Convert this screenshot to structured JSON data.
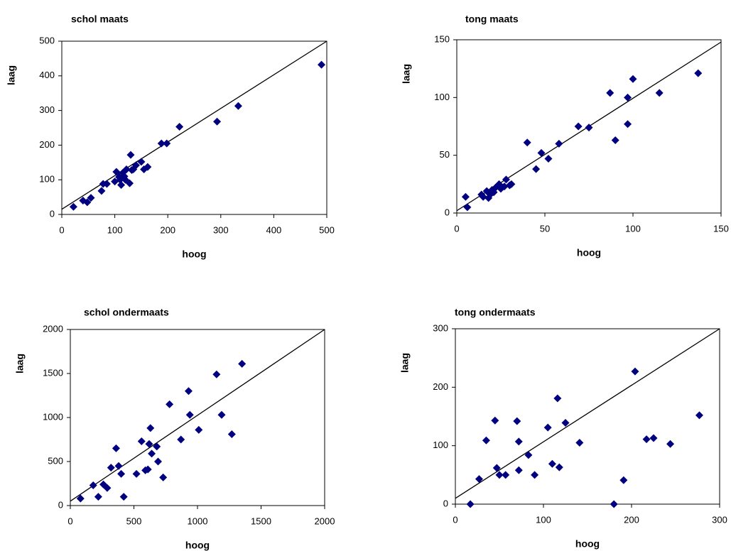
{
  "chart_data": [
    {
      "type": "scatter",
      "title": "schol maats",
      "xlabel": "hoog",
      "ylabel": "laag",
      "color": "#000080",
      "xlim": [
        0,
        500
      ],
      "ylim": [
        0,
        500
      ],
      "xticks": [
        0,
        100,
        200,
        300,
        400,
        500
      ],
      "yticks": [
        0,
        100,
        200,
        300,
        400,
        500
      ],
      "x": [
        22,
        40,
        48,
        55,
        75,
        78,
        85,
        100,
        103,
        108,
        110,
        112,
        115,
        118,
        120,
        122,
        128,
        130,
        132,
        135,
        140,
        150,
        155,
        162,
        188,
        198,
        222,
        293,
        333,
        490
      ],
      "y": [
        22,
        40,
        35,
        48,
        68,
        88,
        88,
        95,
        123,
        108,
        100,
        85,
        120,
        110,
        100,
        130,
        90,
        172,
        128,
        130,
        142,
        152,
        130,
        137,
        205,
        205,
        253,
        268,
        313,
        432
      ],
      "trend_line": {
        "x": [
          0,
          500
        ],
        "y": [
          15,
          500
        ]
      }
    },
    {
      "type": "scatter",
      "title": "tong maats",
      "xlabel": "hoog",
      "ylabel": "laag",
      "color": "#000080",
      "xlim": [
        0,
        150
      ],
      "ylim": [
        0,
        150
      ],
      "xticks": [
        0,
        50,
        100,
        150
      ],
      "yticks": [
        0,
        50,
        100,
        150
      ],
      "x": [
        5,
        6,
        14,
        15,
        17,
        18,
        19,
        20,
        21,
        22,
        24,
        25,
        27,
        28,
        30,
        31,
        40,
        45,
        48,
        52,
        58,
        69,
        75,
        87,
        90,
        97,
        97,
        100,
        115,
        137
      ],
      "y": [
        14,
        5,
        16,
        14,
        19,
        13,
        16,
        20,
        18,
        22,
        25,
        21,
        23,
        29,
        24,
        25,
        61,
        38,
        52,
        47,
        60,
        75,
        74,
        104,
        63,
        100,
        77,
        116,
        104,
        121
      ],
      "trend_line": {
        "x": [
          0,
          150
        ],
        "y": [
          2,
          148
        ]
      }
    },
    {
      "type": "scatter",
      "title": "schol ondermaats",
      "xlabel": "hoog",
      "ylabel": "laag",
      "color": "#000080",
      "xlim": [
        0,
        2000
      ],
      "ylim": [
        0,
        2000
      ],
      "xticks": [
        0,
        500,
        1000,
        1500,
        2000
      ],
      "yticks": [
        0,
        500,
        1000,
        1500,
        2000
      ],
      "x": [
        80,
        180,
        220,
        260,
        290,
        320,
        360,
        380,
        400,
        420,
        520,
        560,
        590,
        610,
        620,
        630,
        640,
        680,
        690,
        730,
        780,
        870,
        930,
        940,
        1010,
        1150,
        1190,
        1270,
        1350
      ],
      "y": [
        80,
        230,
        100,
        240,
        200,
        430,
        650,
        450,
        360,
        100,
        360,
        730,
        400,
        410,
        700,
        880,
        590,
        670,
        500,
        320,
        1150,
        750,
        1300,
        1030,
        860,
        1490,
        1030,
        810,
        1610
      ],
      "trend_line": {
        "x": [
          0,
          2000
        ],
        "y": [
          50,
          2000
        ]
      }
    },
    {
      "type": "scatter",
      "title": "tong ondermaats",
      "xlabel": "hoog",
      "ylabel": "laag",
      "color": "#000080",
      "xlim": [
        0,
        300
      ],
      "ylim": [
        0,
        300
      ],
      "xticks": [
        0,
        100,
        200,
        300
      ],
      "yticks": [
        0,
        100,
        200,
        300
      ],
      "x": [
        17,
        27,
        35,
        45,
        47,
        50,
        57,
        70,
        72,
        72,
        83,
        90,
        105,
        110,
        116,
        118,
        125,
        141,
        180,
        191,
        204,
        217,
        225,
        244,
        277
      ],
      "y": [
        0,
        43,
        109,
        143,
        62,
        50,
        50,
        142,
        107,
        58,
        84,
        50,
        131,
        69,
        181,
        63,
        139,
        105,
        0,
        41,
        227,
        111,
        113,
        103,
        152
      ],
      "trend_line": {
        "x": [
          0,
          300
        ],
        "y": [
          10,
          300
        ]
      }
    }
  ]
}
